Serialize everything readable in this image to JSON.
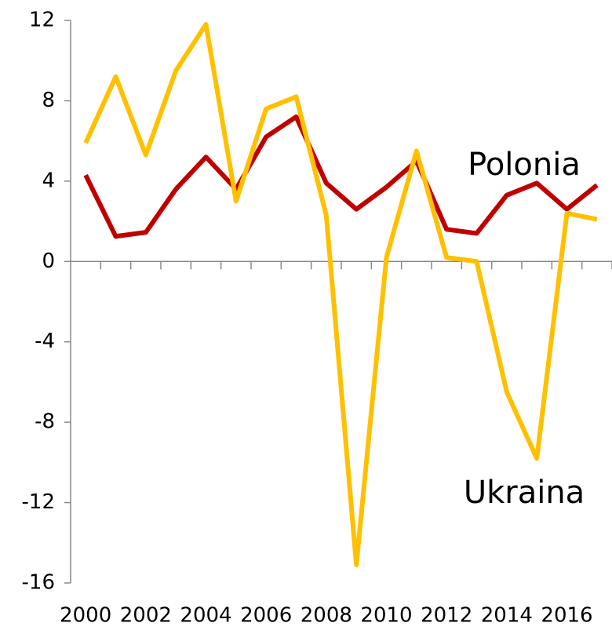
{
  "chart_data": {
    "type": "line",
    "categories": [
      "2000",
      null,
      "2002",
      null,
      "2004",
      null,
      "2006",
      null,
      "2008",
      null,
      "2010",
      null,
      "2012",
      null,
      "2014",
      null,
      "2016",
      null
    ],
    "series": [
      {
        "name": "Polonia",
        "color": "#c00000",
        "values": [
          4.3,
          1.25,
          1.45,
          3.6,
          5.2,
          3.6,
          6.2,
          7.2,
          3.9,
          2.6,
          3.7,
          5.0,
          1.6,
          1.4,
          3.3,
          3.9,
          2.6,
          3.8
        ]
      },
      {
        "name": "Ukraina",
        "color": "#ffc000",
        "values": [
          5.9,
          9.2,
          5.3,
          9.5,
          11.8,
          3.0,
          7.6,
          8.2,
          2.3,
          -15.1,
          0.2,
          5.5,
          0.2,
          0.0,
          -6.5,
          -9.8,
          2.4,
          2.1
        ]
      }
    ],
    "ylim": [
      -16,
      12
    ],
    "yticks": [
      -16,
      -12,
      -8,
      -4,
      0,
      4,
      8,
      12
    ],
    "grid": false
  }
}
